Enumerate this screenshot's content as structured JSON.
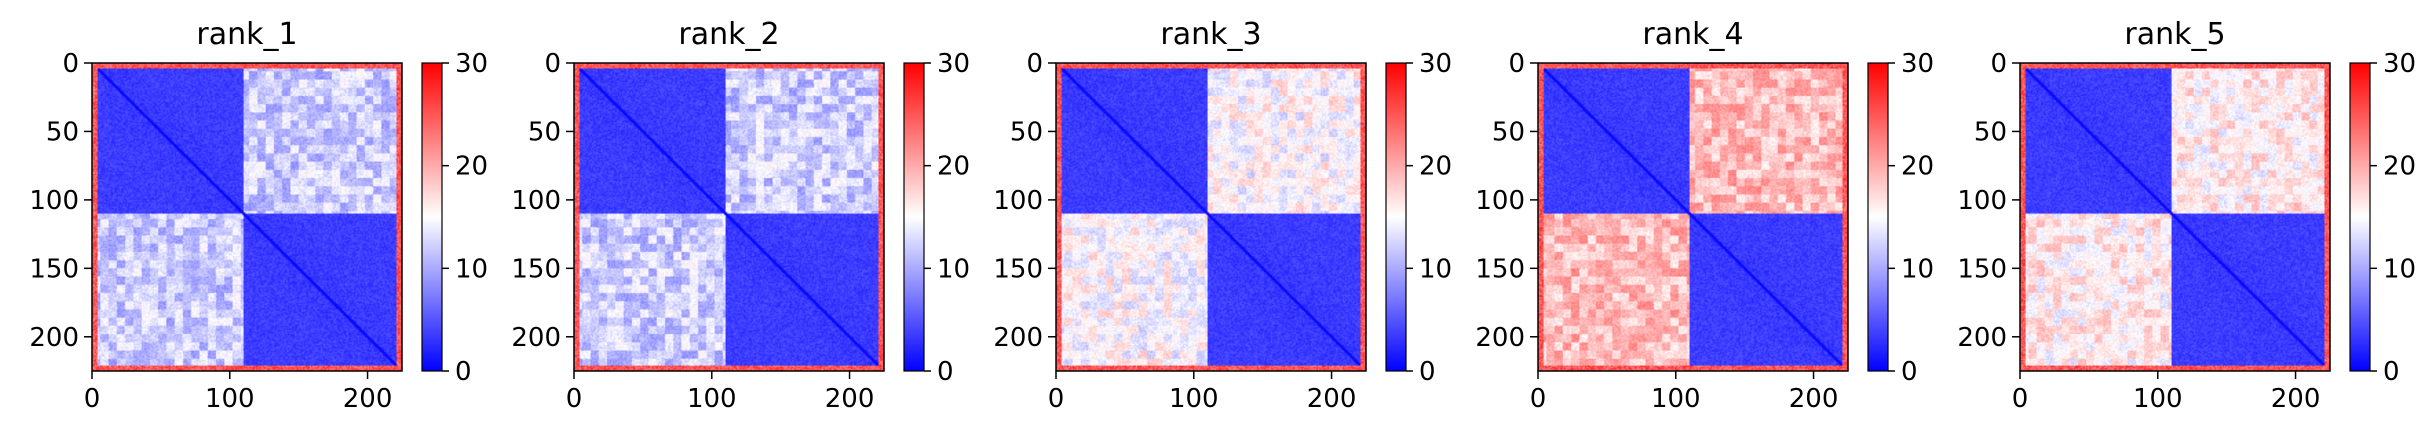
{
  "chart_data": {
    "type": "heatmap",
    "colormap": {
      "name": "bwr",
      "low": "#0000ff",
      "mid": "#ffffff",
      "high": "#ff0000"
    },
    "n": 225,
    "xlim": [
      0,
      225
    ],
    "ylim": [
      225,
      0
    ],
    "xticks": [
      0,
      100,
      200
    ],
    "yticks": [
      0,
      50,
      100,
      150,
      200
    ],
    "colorbar": {
      "min": 0,
      "max": 30,
      "ticks": [
        0,
        10,
        20,
        30
      ]
    },
    "domains": [
      [
        0,
        110
      ],
      [
        110,
        225
      ]
    ],
    "panels": [
      {
        "title": "rank_1",
        "inter_domain_error": 12,
        "intra_domain_error": 2,
        "edge_error": 28
      },
      {
        "title": "rank_2",
        "inter_domain_error": 12,
        "intra_domain_error": 2,
        "edge_error": 28
      },
      {
        "title": "rank_3",
        "inter_domain_error": 15,
        "intra_domain_error": 2,
        "edge_error": 28
      },
      {
        "title": "rank_4",
        "inter_domain_error": 19,
        "intra_domain_error": 2,
        "edge_error": 28
      },
      {
        "title": "rank_5",
        "inter_domain_error": 16,
        "intra_domain_error": 2,
        "edge_error": 28
      }
    ]
  }
}
